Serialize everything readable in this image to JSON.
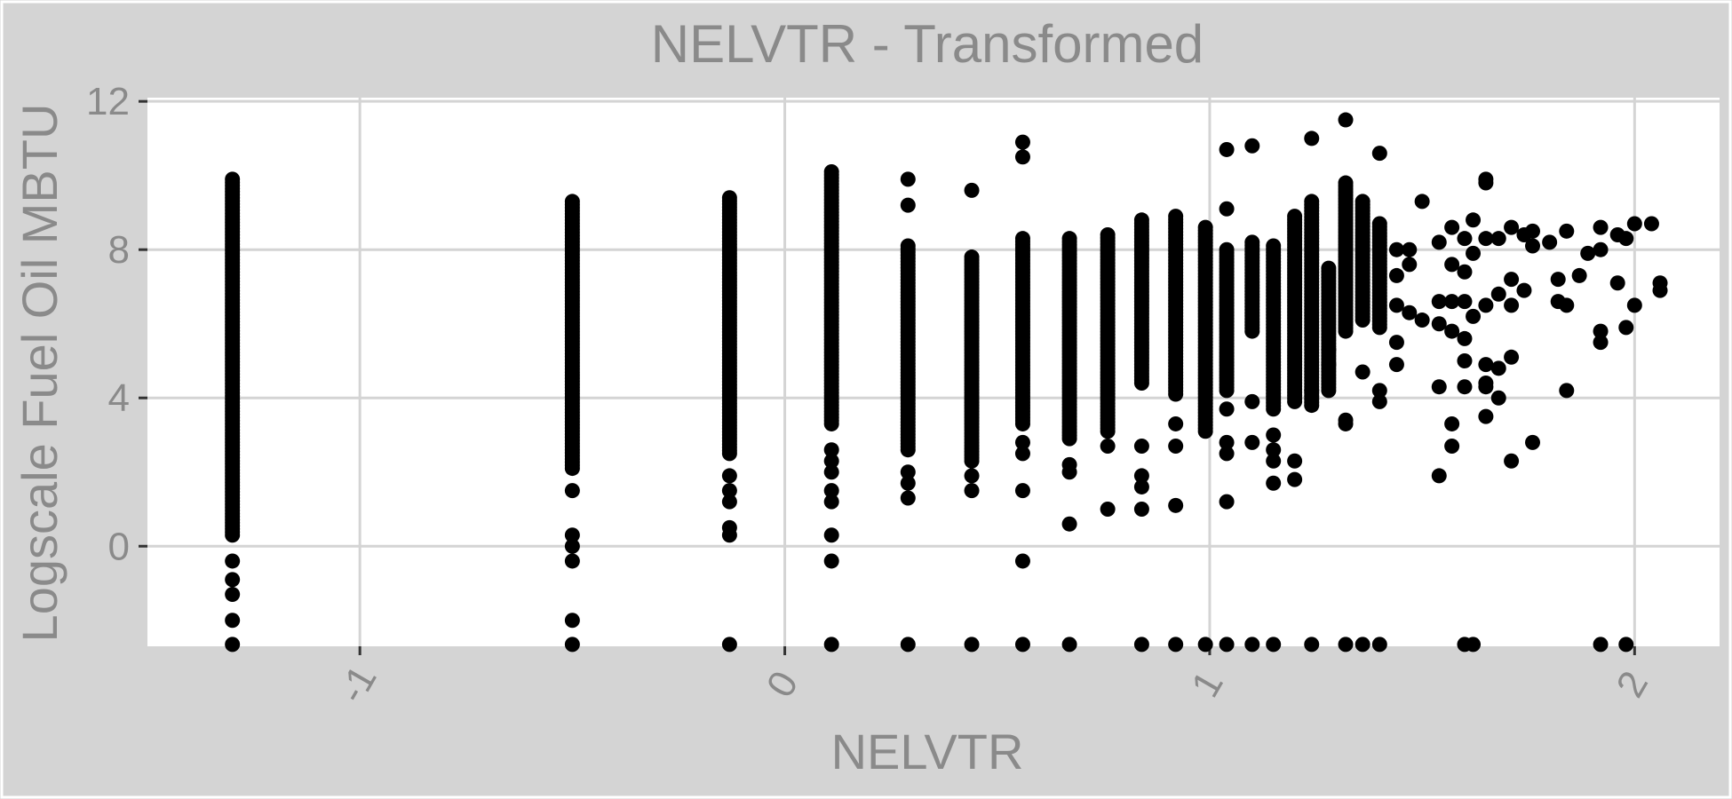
{
  "chart_data": {
    "type": "scatter",
    "title": "NELVTR - Transformed",
    "xlabel": "NELVTR",
    "ylabel": "Logscale Fuel Oil MBTU",
    "xlim": [
      -1.5,
      2.2
    ],
    "ylim": [
      -2.7,
      12.1
    ],
    "x_ticks": [
      -1,
      0,
      1,
      2
    ],
    "x_tick_labels": [
      "-1",
      "0",
      "1",
      "2"
    ],
    "y_ticks": [
      0,
      4,
      8,
      12
    ],
    "y_tick_labels": [
      "0",
      "4",
      "8",
      "12"
    ],
    "grid": true,
    "legend": "none",
    "colors": {
      "background": "#d4d4d4",
      "panel": "#ffffff",
      "grid": "#d4d4d4",
      "text": "#8a8a8a",
      "point": "#000000"
    },
    "columns": [
      {
        "x": -1.3,
        "y_min": 0.3,
        "y_max": 9.9,
        "outliers": [
          -0.4,
          -0.9,
          -1.3,
          -2.0,
          -2.65
        ]
      },
      {
        "x": -0.5,
        "y_min": 2.1,
        "y_max": 9.3,
        "outliers": [
          1.5,
          0.3,
          0.0,
          -0.4,
          -2.0,
          -2.65
        ]
      },
      {
        "x": -0.13,
        "y_min": 2.5,
        "y_max": 9.4,
        "outliers": [
          1.9,
          1.5,
          1.2,
          0.5,
          0.3,
          -2.65
        ]
      },
      {
        "x": 0.11,
        "y_min": 3.3,
        "y_max": 10.1,
        "outliers": [
          2.6,
          2.3,
          2.0,
          1.5,
          1.2,
          0.3,
          -0.4,
          -2.65
        ]
      },
      {
        "x": 0.29,
        "y_min": 2.6,
        "y_max": 8.1,
        "outliers": [
          9.2,
          9.9,
          2.0,
          1.7,
          1.3,
          -2.65
        ]
      },
      {
        "x": 0.44,
        "y_min": 2.3,
        "y_max": 7.8,
        "outliers": [
          9.6,
          1.9,
          1.5,
          -2.65
        ]
      },
      {
        "x": 0.56,
        "y_min": 3.3,
        "y_max": 8.3,
        "outliers": [
          10.9,
          10.5,
          2.8,
          2.5,
          1.5,
          -0.4,
          -2.65
        ]
      },
      {
        "x": 0.67,
        "y_min": 2.9,
        "y_max": 8.3,
        "outliers": [
          2.2,
          2.0,
          0.6,
          -2.65
        ]
      },
      {
        "x": 0.76,
        "y_min": 3.1,
        "y_max": 8.4,
        "outliers": [
          2.7,
          1.0
        ]
      },
      {
        "x": 0.84,
        "y_min": 4.4,
        "y_max": 8.8,
        "outliers": [
          2.7,
          1.9,
          1.6,
          1.0,
          -2.65
        ]
      },
      {
        "x": 0.92,
        "y_min": 4.1,
        "y_max": 8.9,
        "outliers": [
          3.3,
          2.7,
          1.1,
          -2.65
        ]
      },
      {
        "x": 0.99,
        "y_min": 3.1,
        "y_max": 8.6,
        "outliers": [
          -2.65
        ]
      },
      {
        "x": 1.04,
        "y_min": 4.2,
        "y_max": 8.0,
        "outliers": [
          10.7,
          9.1,
          3.7,
          2.8,
          2.5,
          1.2,
          -2.65
        ]
      },
      {
        "x": 1.1,
        "y_min": 5.8,
        "y_max": 8.2,
        "outliers": [
          10.8,
          3.9,
          2.8,
          -2.65
        ]
      },
      {
        "x": 1.15,
        "y_min": 3.7,
        "y_max": 8.1,
        "outliers": [
          3.0,
          2.6,
          2.3,
          1.7,
          -2.65
        ]
      },
      {
        "x": 1.2,
        "y_min": 3.9,
        "y_max": 8.9,
        "outliers": [
          2.3,
          1.8
        ]
      },
      {
        "x": 1.24,
        "y_min": 3.8,
        "y_max": 9.3,
        "outliers": [
          11.0,
          4.2,
          -2.65
        ]
      },
      {
        "x": 1.28,
        "y_min": 4.2,
        "y_max": 7.5,
        "outliers": [
          5.3,
          4.9
        ]
      },
      {
        "x": 1.32,
        "y_min": 5.8,
        "y_max": 9.8,
        "outliers": [
          11.5,
          3.4,
          3.3,
          -2.65
        ]
      },
      {
        "x": 1.36,
        "y_min": 6.1,
        "y_max": 9.3,
        "outliers": [
          4.7,
          -2.65
        ]
      },
      {
        "x": 1.4,
        "y_min": 5.9,
        "y_max": 8.7,
        "outliers": [
          10.6,
          4.2,
          3.9,
          -2.65
        ]
      }
    ],
    "scatter_points": [
      [
        1.44,
        7.3
      ],
      [
        1.44,
        8.0
      ],
      [
        1.44,
        6.5
      ],
      [
        1.44,
        5.5
      ],
      [
        1.44,
        4.9
      ],
      [
        1.47,
        7.6
      ],
      [
        1.47,
        8.0
      ],
      [
        1.47,
        6.3
      ],
      [
        1.5,
        9.3
      ],
      [
        1.5,
        6.1
      ],
      [
        1.54,
        8.2
      ],
      [
        1.54,
        6.6
      ],
      [
        1.54,
        6.0
      ],
      [
        1.54,
        4.3
      ],
      [
        1.54,
        1.9
      ],
      [
        1.57,
        8.6
      ],
      [
        1.57,
        7.6
      ],
      [
        1.57,
        6.6
      ],
      [
        1.57,
        5.8
      ],
      [
        1.57,
        3.3
      ],
      [
        1.57,
        2.7
      ],
      [
        1.6,
        8.3
      ],
      [
        1.6,
        7.4
      ],
      [
        1.6,
        6.6
      ],
      [
        1.6,
        5.6
      ],
      [
        1.6,
        5.0
      ],
      [
        1.6,
        4.3
      ],
      [
        1.6,
        -2.65
      ],
      [
        1.62,
        8.8
      ],
      [
        1.62,
        7.9
      ],
      [
        1.62,
        6.2
      ],
      [
        1.62,
        -2.65
      ],
      [
        1.65,
        9.9
      ],
      [
        1.65,
        9.8
      ],
      [
        1.65,
        8.3
      ],
      [
        1.65,
        6.5
      ],
      [
        1.65,
        4.9
      ],
      [
        1.65,
        4.4
      ],
      [
        1.65,
        4.3
      ],
      [
        1.65,
        3.5
      ],
      [
        1.68,
        8.3
      ],
      [
        1.68,
        6.8
      ],
      [
        1.68,
        4.8
      ],
      [
        1.68,
        4.0
      ],
      [
        1.71,
        8.6
      ],
      [
        1.71,
        7.2
      ],
      [
        1.71,
        6.5
      ],
      [
        1.71,
        5.1
      ],
      [
        1.71,
        2.3
      ],
      [
        1.74,
        8.4
      ],
      [
        1.74,
        6.9
      ],
      [
        1.76,
        8.5
      ],
      [
        1.76,
        8.1
      ],
      [
        1.76,
        2.8
      ],
      [
        1.8,
        8.2
      ],
      [
        1.82,
        7.2
      ],
      [
        1.82,
        6.6
      ],
      [
        1.84,
        8.5
      ],
      [
        1.84,
        6.5
      ],
      [
        1.84,
        4.2
      ],
      [
        1.87,
        7.3
      ],
      [
        1.89,
        7.9
      ],
      [
        1.92,
        8.6
      ],
      [
        1.92,
        8.0
      ],
      [
        1.92,
        5.8
      ],
      [
        1.92,
        5.5
      ],
      [
        1.92,
        -2.65
      ],
      [
        1.96,
        8.4
      ],
      [
        1.96,
        7.1
      ],
      [
        1.98,
        8.3
      ],
      [
        1.98,
        5.9
      ],
      [
        1.98,
        -2.65
      ],
      [
        2.0,
        8.7
      ],
      [
        2.0,
        6.5
      ],
      [
        2.04,
        8.7
      ],
      [
        2.06,
        7.1
      ],
      [
        2.06,
        6.9
      ]
    ]
  }
}
